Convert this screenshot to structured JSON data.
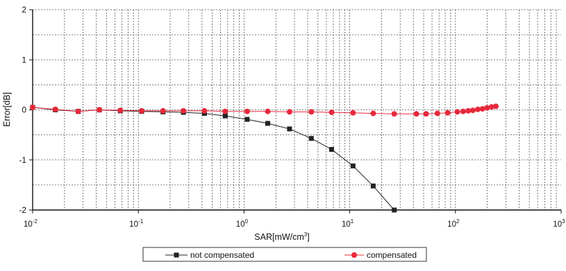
{
  "chart_data": {
    "type": "line",
    "xscale": "log",
    "xlim": [
      0.01,
      1000
    ],
    "ylim": [
      -2,
      2
    ],
    "grid": true,
    "legend_placement": "bottom",
    "xlabel_main": "SAR[mW/cm",
    "xlabel_sup": "3",
    "xlabel_end": "]",
    "ylabel": "Error[dB]",
    "x_ticks": [
      {
        "value": 0.01,
        "base": "10",
        "exp": "-2"
      },
      {
        "value": 0.1,
        "base": "10",
        "exp": "-1"
      },
      {
        "value": 1,
        "base": "10",
        "exp": "0"
      },
      {
        "value": 10,
        "base": "10",
        "exp": "1"
      },
      {
        "value": 100,
        "base": "10",
        "exp": "2"
      },
      {
        "value": 1000,
        "base": "10",
        "exp": "3"
      }
    ],
    "y_ticks": [
      {
        "value": 2,
        "label": "2"
      },
      {
        "value": 1,
        "label": "1"
      },
      {
        "value": 0,
        "label": "0"
      },
      {
        "value": -1,
        "label": "-1"
      },
      {
        "value": -2,
        "label": "-2"
      }
    ],
    "series": [
      {
        "name": "not compensated",
        "color": "#222222",
        "marker": "square",
        "x": [
          0.01,
          0.0164,
          0.027,
          0.0427,
          0.0676,
          0.1075,
          0.171,
          0.267,
          0.422,
          0.664,
          1.07,
          1.675,
          2.693,
          4.335,
          6.74,
          10.73,
          16.67,
          26.37
        ],
        "y": [
          0.05,
          0.0,
          -0.03,
          0.0,
          -0.02,
          -0.03,
          -0.04,
          -0.05,
          -0.07,
          -0.12,
          -0.19,
          -0.27,
          -0.38,
          -0.57,
          -0.79,
          -1.12,
          -1.52,
          -2.0
        ]
      },
      {
        "name": "compensated",
        "color": "#e8283a",
        "marker": "circle",
        "x": [
          0.01,
          0.0164,
          0.027,
          0.0427,
          0.0676,
          0.1075,
          0.171,
          0.267,
          0.422,
          0.664,
          1.07,
          1.675,
          2.693,
          4.335,
          6.74,
          10.73,
          16.67,
          26.37,
          42.75,
          52.8,
          67.5,
          84.5,
          104.4,
          118.3,
          132.0,
          145.9,
          162.8,
          180.0,
          198.9,
          219.8,
          241.7
        ],
        "y": [
          0.05,
          0.01,
          -0.03,
          0.0,
          -0.01,
          -0.02,
          -0.02,
          -0.02,
          -0.02,
          -0.03,
          -0.03,
          -0.03,
          -0.04,
          -0.04,
          -0.05,
          -0.06,
          -0.07,
          -0.08,
          -0.08,
          -0.08,
          -0.07,
          -0.06,
          -0.04,
          -0.03,
          -0.02,
          -0.01,
          0.01,
          0.02,
          0.04,
          0.06,
          0.07
        ]
      }
    ]
  }
}
